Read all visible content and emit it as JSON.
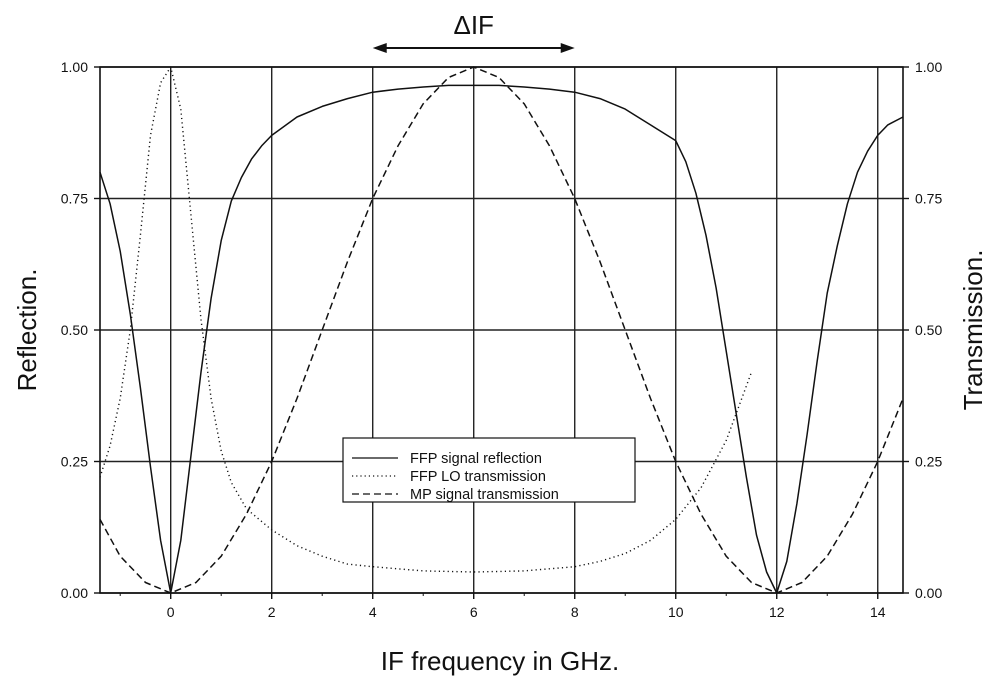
{
  "chart_data": {
    "type": "line",
    "title": "",
    "annotation": "ΔIF",
    "annotation_range": [
      4,
      8
    ],
    "xlabel": "IF frequency in GHz.",
    "ylabel_left": "Reflection.",
    "ylabel_right": "Transmission.",
    "xlim": [
      -1.4,
      14.5
    ],
    "ylim": [
      0,
      1
    ],
    "x_ticks": [
      "0",
      "2",
      "4",
      "6",
      "8",
      "10",
      "12",
      "14"
    ],
    "y_ticks": [
      "0.00",
      "0.25",
      "0.50",
      "0.75",
      "1.00"
    ],
    "grid": true,
    "legend_position": "center-bottom",
    "series": [
      {
        "name": "FFP signal reflection",
        "style": "solid",
        "x": [
          -1.4,
          -1.2,
          -1.0,
          -0.8,
          -0.6,
          -0.4,
          -0.2,
          0,
          0.2,
          0.4,
          0.6,
          0.8,
          1.0,
          1.2,
          1.4,
          1.6,
          1.8,
          2.0,
          2.5,
          3.0,
          3.5,
          4.0,
          4.5,
          5.0,
          5.5,
          6.0,
          6.5,
          7.0,
          7.5,
          8.0,
          8.5,
          9.0,
          9.5,
          10.0,
          10.2,
          10.4,
          10.6,
          10.8,
          11.0,
          11.2,
          11.4,
          11.6,
          11.8,
          12.0,
          12.2,
          12.4,
          12.6,
          12.8,
          13.0,
          13.2,
          13.4,
          13.6,
          13.8,
          14.0,
          14.2,
          14.5
        ],
        "y": [
          0.8,
          0.74,
          0.65,
          0.53,
          0.39,
          0.24,
          0.1,
          0.0,
          0.1,
          0.26,
          0.42,
          0.56,
          0.67,
          0.745,
          0.79,
          0.825,
          0.85,
          0.87,
          0.905,
          0.925,
          0.94,
          0.952,
          0.958,
          0.962,
          0.965,
          0.965,
          0.965,
          0.962,
          0.958,
          0.952,
          0.94,
          0.92,
          0.89,
          0.86,
          0.82,
          0.76,
          0.68,
          0.58,
          0.46,
          0.34,
          0.22,
          0.11,
          0.04,
          0.0,
          0.06,
          0.17,
          0.3,
          0.44,
          0.57,
          0.66,
          0.74,
          0.8,
          0.84,
          0.87,
          0.89,
          0.905
        ]
      },
      {
        "name": "FFP LO transmission",
        "style": "dotted",
        "x": [
          -1.4,
          -1.2,
          -1.0,
          -0.8,
          -0.6,
          -0.4,
          -0.2,
          0,
          0.2,
          0.4,
          0.6,
          0.8,
          1.0,
          1.2,
          1.5,
          2.0,
          2.5,
          3.0,
          3.5,
          4.0,
          5.0,
          6.0,
          7.0,
          8.0,
          8.5,
          9.0,
          9.5,
          10.0,
          10.5,
          11.0,
          11.5
        ],
        "y": [
          0.22,
          0.28,
          0.37,
          0.5,
          0.68,
          0.87,
          0.97,
          1.0,
          0.92,
          0.72,
          0.52,
          0.37,
          0.27,
          0.21,
          0.16,
          0.12,
          0.09,
          0.07,
          0.055,
          0.05,
          0.042,
          0.04,
          0.042,
          0.05,
          0.06,
          0.075,
          0.1,
          0.14,
          0.2,
          0.29,
          0.42
        ]
      },
      {
        "name": "MP signal transmission",
        "style": "dashed",
        "x": [
          -1.4,
          -1.0,
          -0.5,
          0,
          0.5,
          1.0,
          1.5,
          2.0,
          2.5,
          3.0,
          3.5,
          4.0,
          4.5,
          5.0,
          5.5,
          6.0,
          6.5,
          7.0,
          7.5,
          8.0,
          8.5,
          9.0,
          9.5,
          10.0,
          10.5,
          11.0,
          11.5,
          12.0,
          12.5,
          13.0,
          13.5,
          14.0,
          14.5
        ],
        "y": [
          0.14,
          0.07,
          0.02,
          0.0,
          0.02,
          0.07,
          0.15,
          0.25,
          0.37,
          0.5,
          0.63,
          0.75,
          0.85,
          0.93,
          0.98,
          1.0,
          0.98,
          0.93,
          0.85,
          0.75,
          0.63,
          0.5,
          0.37,
          0.25,
          0.15,
          0.07,
          0.02,
          0.0,
          0.02,
          0.07,
          0.15,
          0.25,
          0.37
        ]
      }
    ]
  }
}
